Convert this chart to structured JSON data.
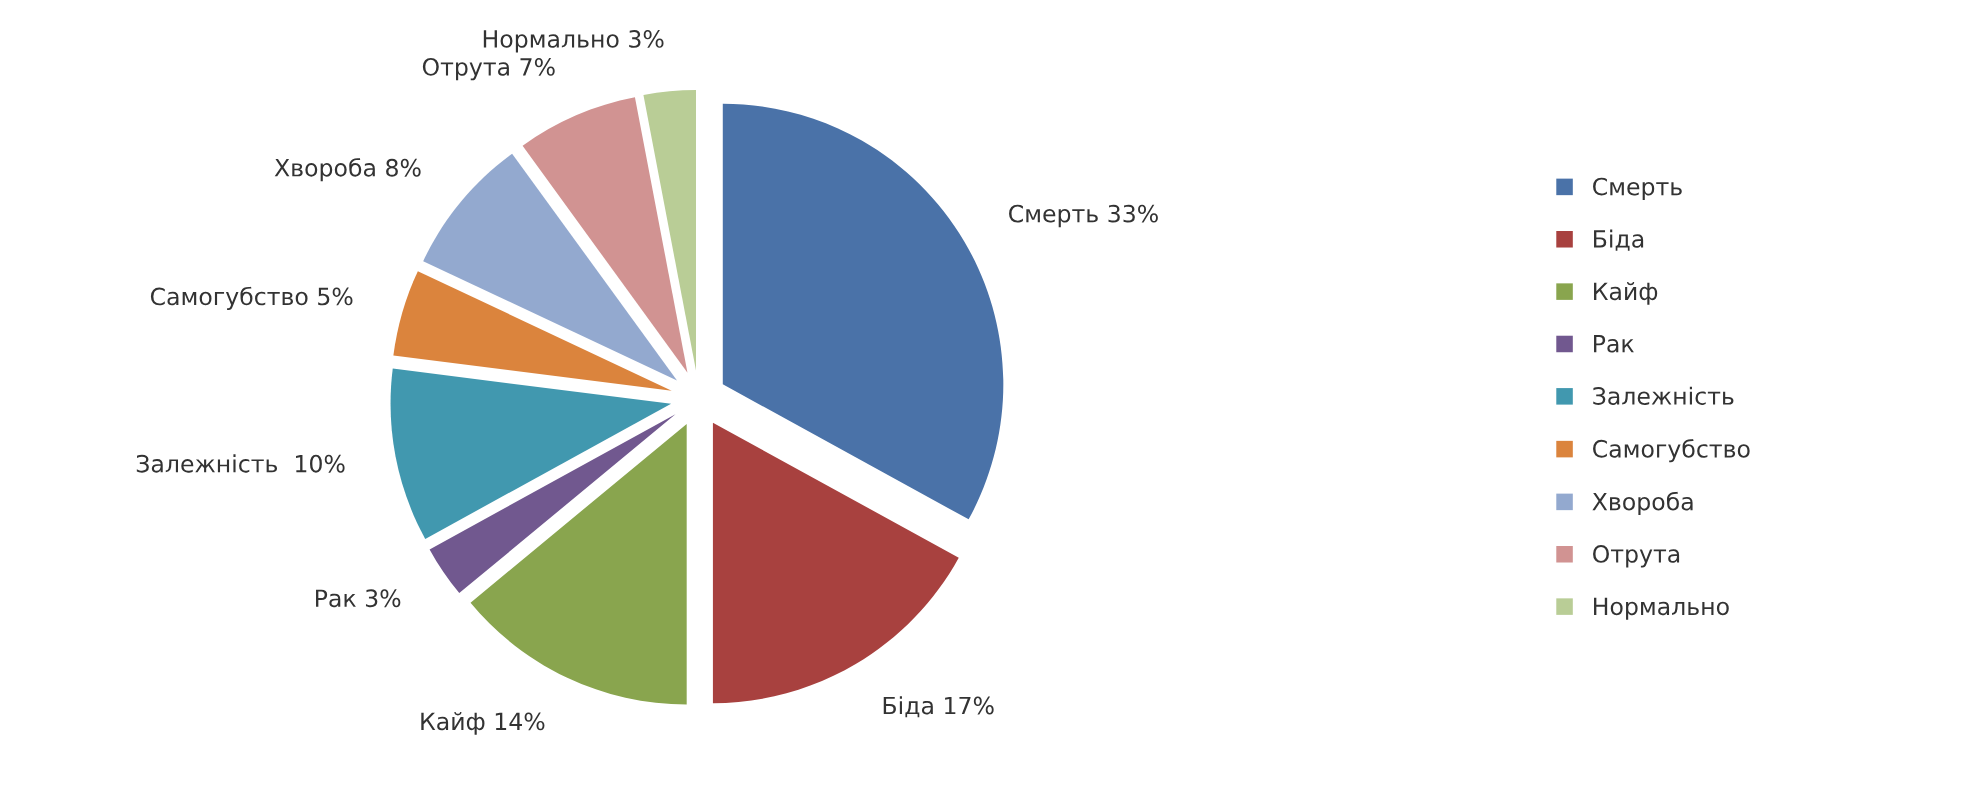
{
  "chart_data": {
    "type": "pie",
    "categories": [
      "Смерть",
      "Біда",
      "Кайф",
      "Рак",
      "Залежність",
      "Самогубство",
      "Хвороба",
      "Отрута",
      "Нормально"
    ],
    "values": [
      33,
      17,
      14,
      3,
      10,
      5,
      8,
      7,
      3
    ],
    "colors": [
      "#4a72a8",
      "#a8413f",
      "#89a54e",
      "#71588f",
      "#4198af",
      "#db843d",
      "#93a9cf",
      "#d19392",
      "#b9cd96"
    ],
    "value_labels": [
      "Смерть 33%",
      "Біда 17%",
      "Кайф 14%",
      "Рак 3%",
      "Залежність  10%",
      "Самогубство 5%",
      "Хвороба 8%",
      "Отрута 7%",
      "Нормально 3%"
    ],
    "legend": "right"
  }
}
